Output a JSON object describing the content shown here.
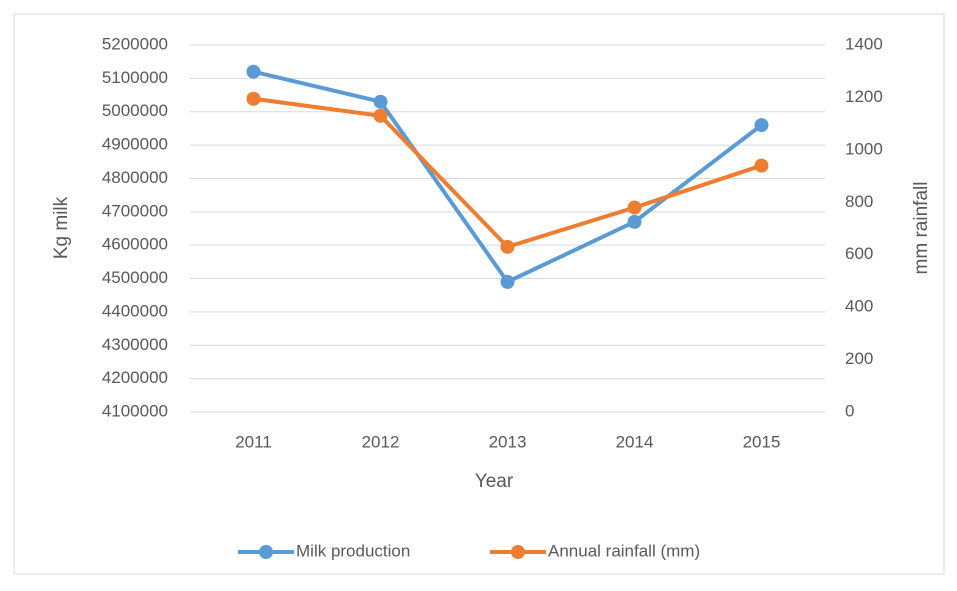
{
  "chart_data": {
    "type": "line",
    "x_label": "Year",
    "y_label": "Kg milk",
    "y2_label": "mm rainfall",
    "categories": [
      "2011",
      "2012",
      "2013",
      "2014",
      "2015"
    ],
    "series": [
      {
        "name": "Milk production",
        "color": "#5b9bd5",
        "values": [
          5120000,
          5030000,
          4490000,
          4670000,
          4960000
        ]
      },
      {
        "name": "Annual rainfall (mm)",
        "color": "#ed7d31",
        "axis": "y2",
        "values": [
          1195,
          1130,
          630,
          780,
          940
        ]
      }
    ],
    "ylim": [
      4100000,
      5200000
    ],
    "yticks": [
      4100000,
      4200000,
      4300000,
      4400000,
      4500000,
      4600000,
      4700000,
      4800000,
      4900000,
      5000000,
      5100000,
      5200000
    ],
    "y2lim": [
      0,
      1400
    ],
    "y2ticks": [
      0,
      200,
      400,
      600,
      800,
      1000,
      1200,
      1400
    ],
    "grid": true,
    "legend": "bottom"
  }
}
